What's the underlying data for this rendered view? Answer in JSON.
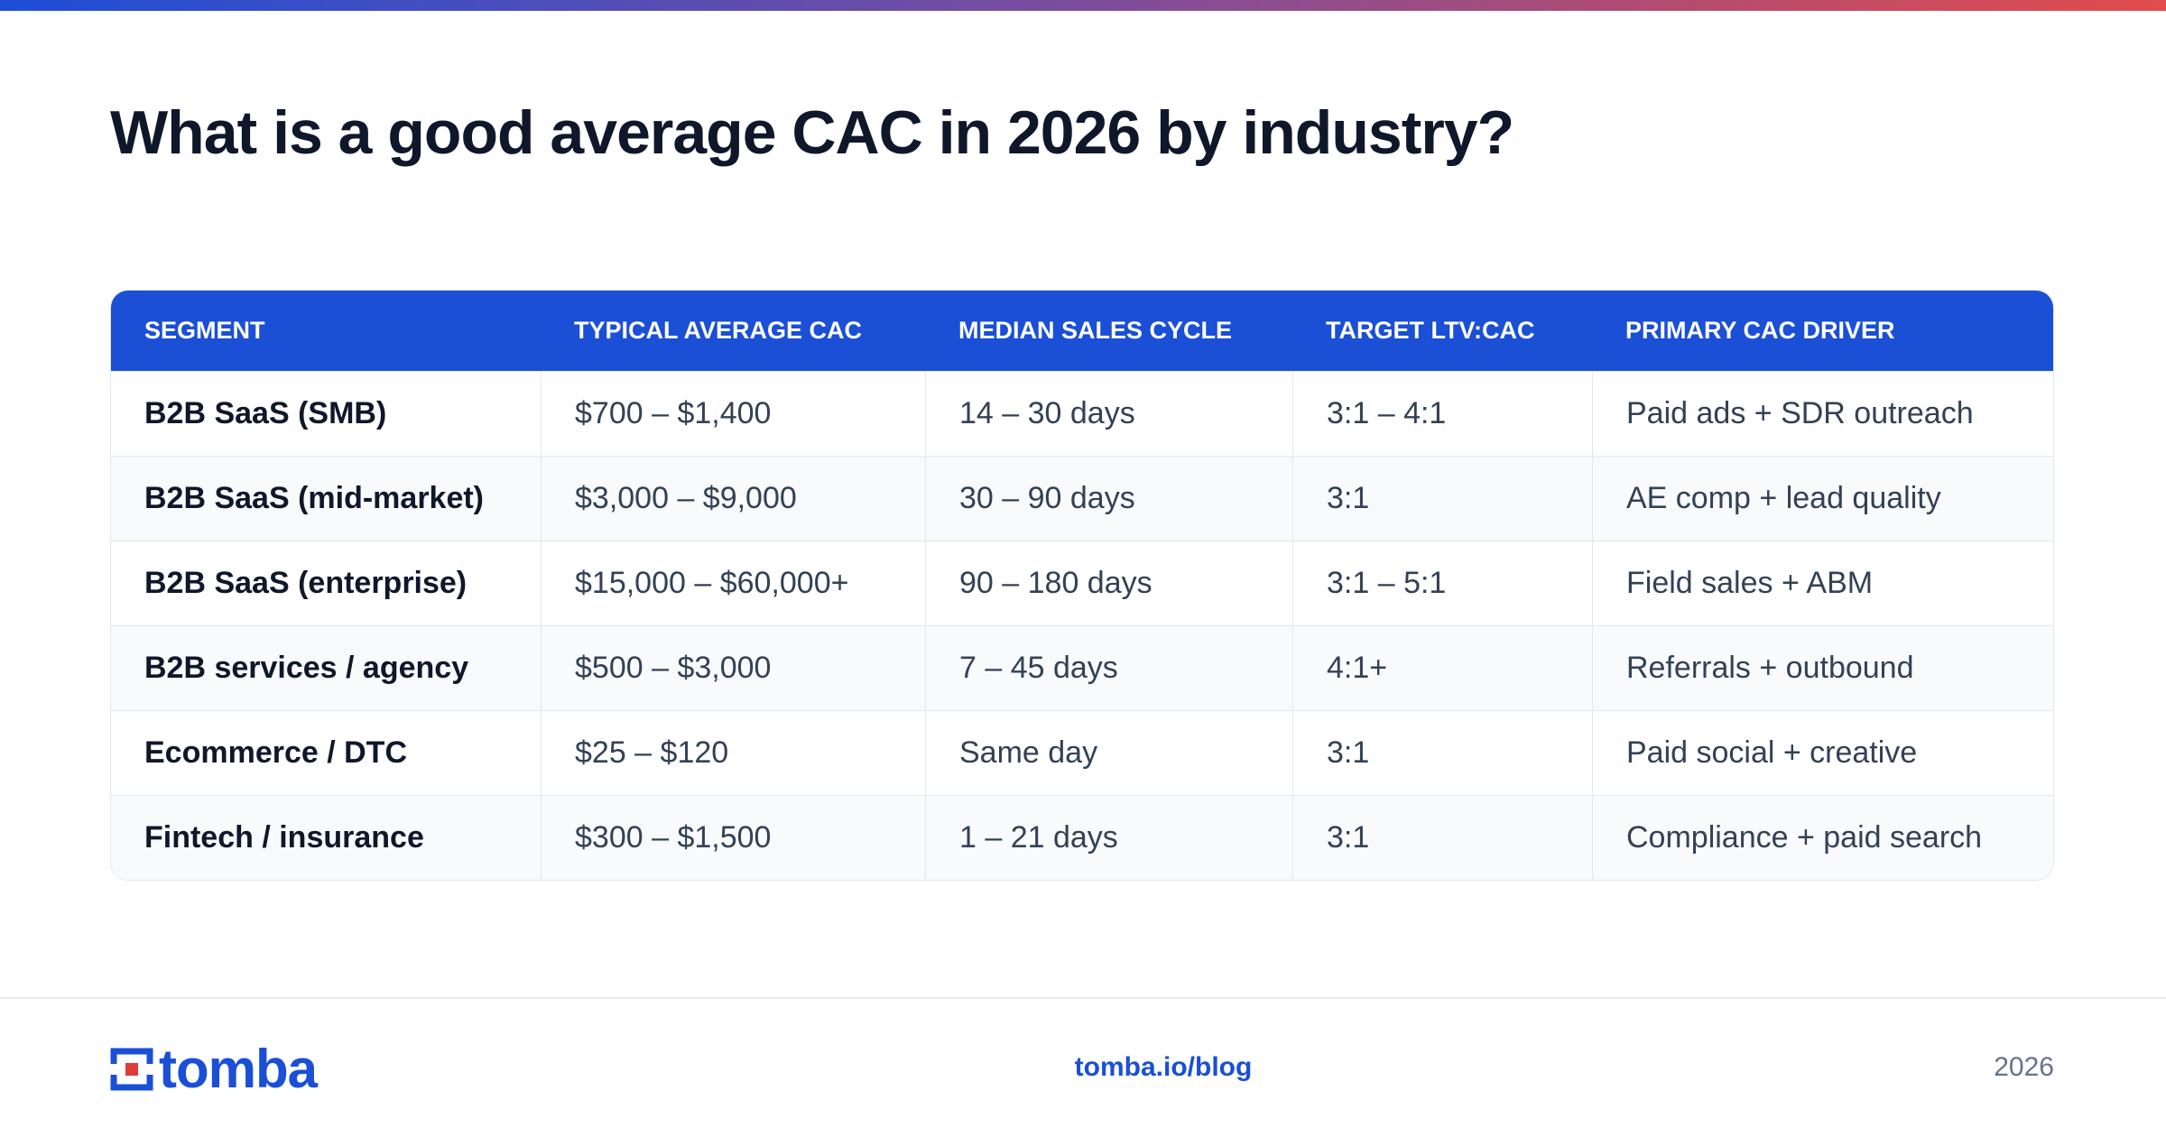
{
  "header": {
    "title": "What is a good average CAC in 2026 by industry?"
  },
  "table": {
    "columns": [
      "SEGMENT",
      "TYPICAL AVERAGE CAC",
      "MEDIAN SALES CYCLE",
      "TARGET LTV:CAC",
      "PRIMARY CAC DRIVER"
    ],
    "rows": [
      [
        "B2B SaaS (SMB)",
        "$700 – $1,400",
        "14 – 30 days",
        "3:1 – 4:1",
        "Paid ads + SDR outreach"
      ],
      [
        "B2B SaaS (mid-market)",
        "$3,000 – $9,000",
        "30 – 90 days",
        "3:1",
        "AE comp + lead quality"
      ],
      [
        "B2B SaaS (enterprise)",
        "$15,000 – $60,000+",
        "90 – 180 days",
        "3:1 – 5:1",
        "Field sales + ABM"
      ],
      [
        "B2B services / agency",
        "$500 – $3,000",
        "7 – 45 days",
        "4:1+",
        "Referrals + outbound"
      ],
      [
        "Ecommerce / DTC",
        "$25 – $120",
        "Same day",
        "3:1",
        "Paid social + creative"
      ],
      [
        "Fintech / insurance",
        "$300 – $1,500",
        "1 – 21 days",
        "3:1",
        "Compliance + paid search"
      ]
    ]
  },
  "footer": {
    "brand": "tomba",
    "url": "tomba.io/blog",
    "year": "2026"
  }
}
